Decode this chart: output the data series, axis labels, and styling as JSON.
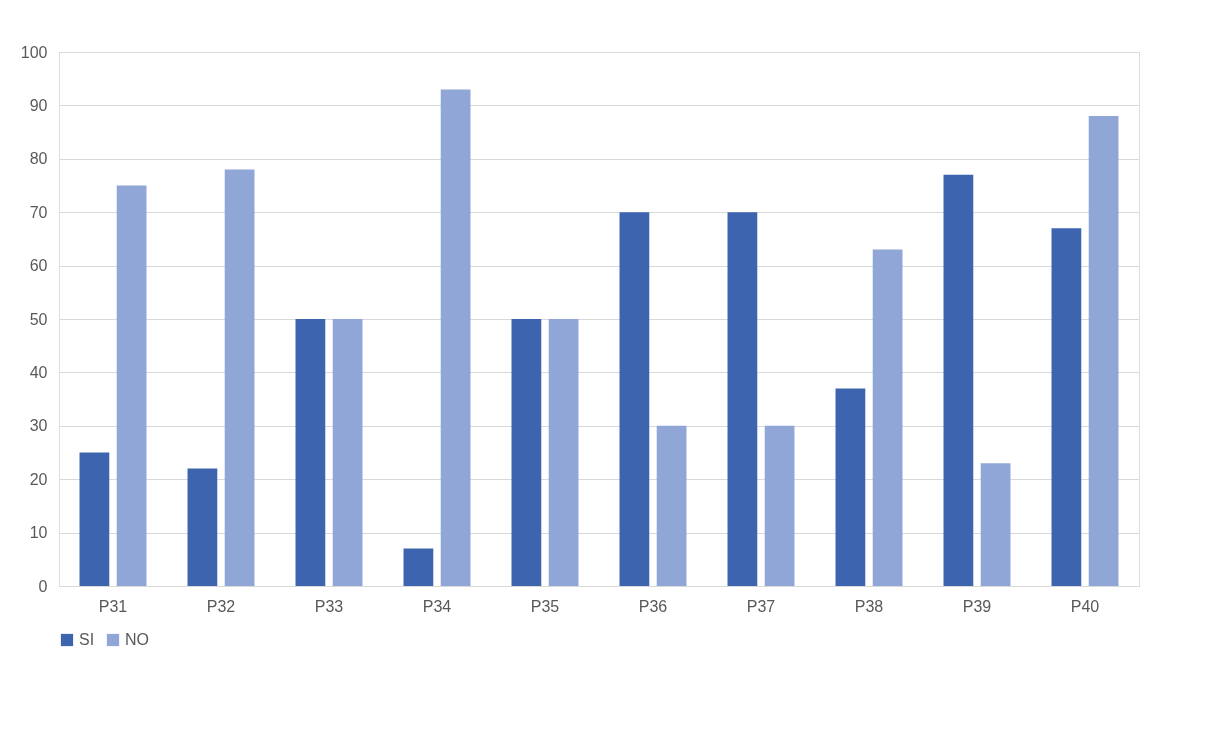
{
  "chart_data": {
    "type": "bar",
    "categories": [
      "P31",
      "P32",
      "P33",
      "P34",
      "P35",
      "P36",
      "P37",
      "P38",
      "P39",
      "P40"
    ],
    "series": [
      {
        "name": "SI",
        "color": "#3d64ae",
        "values": [
          25,
          22,
          50,
          7,
          50,
          70,
          70,
          37,
          77,
          67
        ]
      },
      {
        "name": "NO",
        "color": "#8fa6d7",
        "values": [
          75,
          78,
          50,
          93,
          50,
          30,
          30,
          63,
          23,
          88
        ]
      }
    ],
    "ylim": [
      0,
      100
    ],
    "yticks": [
      0,
      10,
      20,
      30,
      40,
      50,
      60,
      70,
      80,
      90,
      100
    ],
    "grid": "y",
    "legend": "bottom"
  }
}
